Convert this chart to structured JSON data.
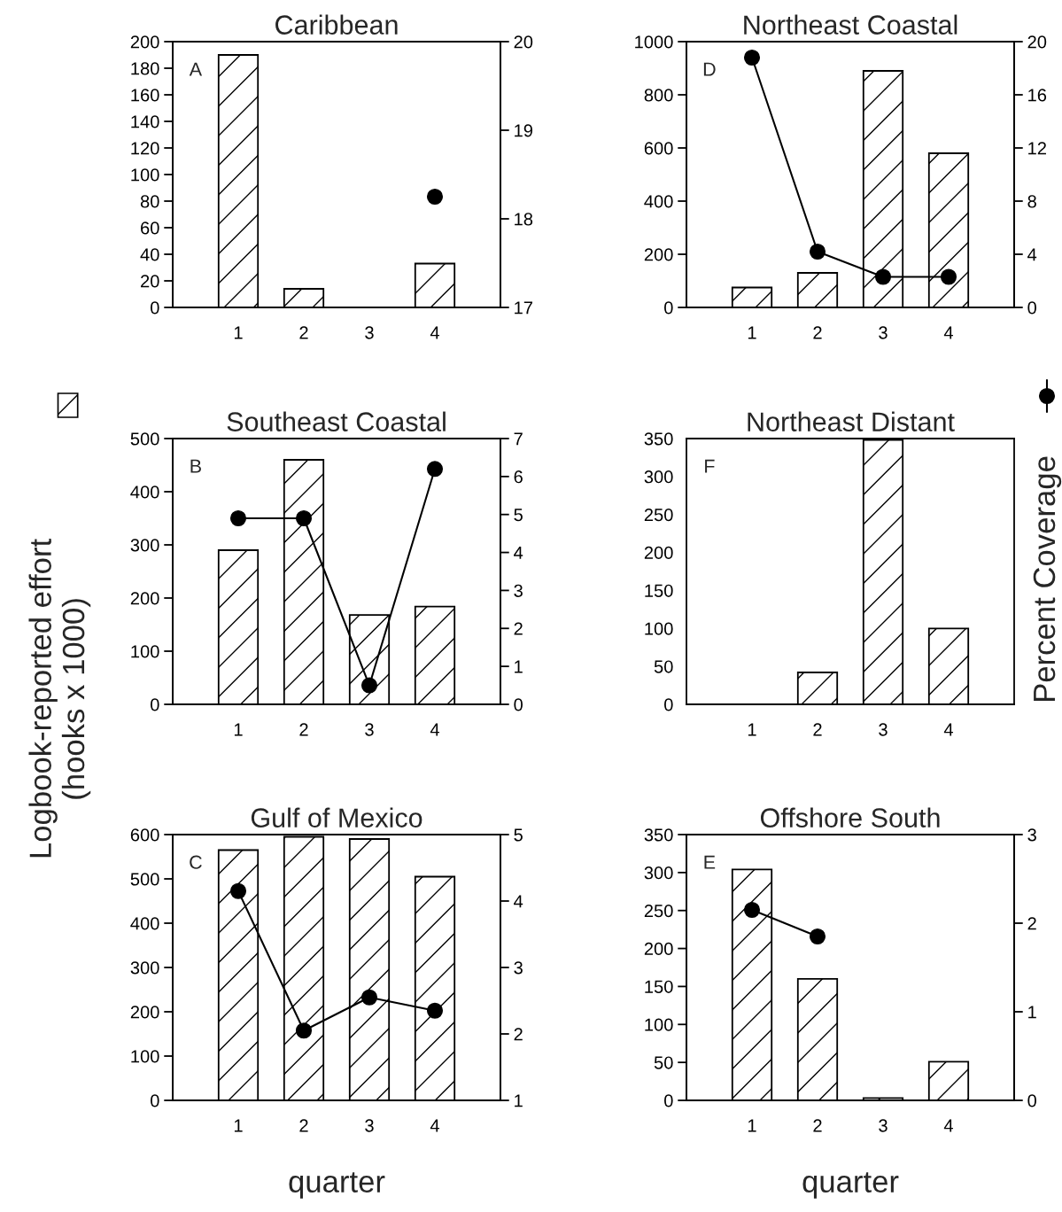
{
  "chart_data": [
    {
      "type": "bar",
      "title": "Caribbean",
      "annotations": [
        "A"
      ],
      "x": [
        1,
        2,
        3,
        4
      ],
      "xlim": [
        0,
        5
      ],
      "xticks": [
        1,
        2,
        3,
        4
      ],
      "ylim": [
        0,
        200
      ],
      "yticks": [
        0,
        20,
        40,
        60,
        80,
        100,
        120,
        140,
        160,
        180,
        200
      ],
      "y2lim": [
        17,
        20
      ],
      "y2ticks": [
        17,
        18,
        19,
        20
      ],
      "grid": false,
      "legend": false,
      "series": [
        {
          "color": "#000000",
          "values": [
            190,
            14,
            0,
            33
          ]
        },
        {
          "type": "line",
          "axis": "y2",
          "color": "#000000",
          "marker": "circle",
          "line_style": "solid",
          "values": [
            null,
            null,
            null,
            18.25
          ]
        }
      ]
    },
    {
      "type": "bar",
      "title": "Northeast Coastal",
      "annotations": [
        "D"
      ],
      "x": [
        1,
        2,
        3,
        4
      ],
      "xlim": [
        0,
        5
      ],
      "xticks": [
        1,
        2,
        3,
        4
      ],
      "ylim": [
        0,
        1000
      ],
      "yticks": [
        0,
        200,
        400,
        600,
        800,
        1000
      ],
      "y2lim": [
        0,
        20
      ],
      "y2ticks": [
        0,
        4,
        8,
        12,
        16,
        20
      ],
      "grid": false,
      "legend": false,
      "series": [
        {
          "color": "#000000",
          "values": [
            75,
            130,
            890,
            580
          ]
        },
        {
          "type": "line",
          "axis": "y2",
          "color": "#000000",
          "marker": "circle",
          "line_style": "solid",
          "values": [
            18.8,
            4.2,
            2.3,
            2.3
          ]
        }
      ]
    },
    {
      "type": "bar",
      "title": "Southeast Coastal",
      "annotations": [
        "B"
      ],
      "ylabel": "Logbook-reported effort\n(hooks x 1000)",
      "x": [
        1,
        2,
        3,
        4
      ],
      "xlim": [
        0,
        5
      ],
      "xticks": [
        1,
        2,
        3,
        4
      ],
      "ylim": [
        0,
        500
      ],
      "yticks": [
        0,
        100,
        200,
        300,
        400,
        500
      ],
      "y2lim": [
        0,
        7
      ],
      "y2ticks": [
        0,
        1,
        2,
        3,
        4,
        5,
        6,
        7
      ],
      "grid": false,
      "legend": false,
      "series": [
        {
          "color": "#000000",
          "values": [
            290,
            460,
            168,
            184
          ]
        },
        {
          "type": "line",
          "axis": "y2",
          "color": "#000000",
          "marker": "circle",
          "line_style": "solid",
          "values": [
            4.9,
            4.9,
            0.5,
            6.2
          ]
        }
      ]
    },
    {
      "type": "bar",
      "title": "Northeast Distant",
      "annotations": [
        "F"
      ],
      "y2label": "Percent Coverage",
      "x": [
        1,
        2,
        3,
        4
      ],
      "xlim": [
        0,
        5
      ],
      "xticks": [
        1,
        2,
        3,
        4
      ],
      "ylim": [
        0,
        350
      ],
      "yticks": [
        0,
        50,
        100,
        150,
        200,
        250,
        300,
        350
      ],
      "grid": false,
      "legend": false,
      "series": [
        {
          "color": "#000000",
          "values": [
            0,
            42,
            348,
            100
          ]
        }
      ]
    },
    {
      "type": "bar",
      "title": "Gulf of Mexico",
      "annotations": [
        "C"
      ],
      "xlabel": "quarter",
      "x": [
        1,
        2,
        3,
        4
      ],
      "xlim": [
        0,
        5
      ],
      "xticks": [
        1,
        2,
        3,
        4
      ],
      "ylim": [
        0,
        600
      ],
      "yticks": [
        0,
        100,
        200,
        300,
        400,
        500,
        600
      ],
      "y2lim": [
        1,
        5
      ],
      "y2ticks": [
        1,
        2,
        3,
        4,
        5
      ],
      "grid": false,
      "legend": false,
      "series": [
        {
          "color": "#000000",
          "values": [
            565,
            595,
            590,
            505
          ]
        },
        {
          "type": "line",
          "axis": "y2",
          "color": "#000000",
          "marker": "circle",
          "line_style": "solid",
          "values": [
            4.15,
            2.05,
            2.55,
            2.35
          ]
        }
      ]
    },
    {
      "type": "bar",
      "title": "Offshore South",
      "annotations": [
        "E"
      ],
      "xlabel": "quarter",
      "x": [
        1,
        2,
        3,
        4
      ],
      "xlim": [
        0,
        5
      ],
      "xticks": [
        1,
        2,
        3,
        4
      ],
      "ylim": [
        0,
        350
      ],
      "yticks": [
        0,
        50,
        100,
        150,
        200,
        250,
        300,
        350
      ],
      "y2lim": [
        0,
        3
      ],
      "y2ticks": [
        0,
        1,
        2,
        3
      ],
      "grid": false,
      "legend": false,
      "series": [
        {
          "color": "#000000",
          "values": [
            304,
            160,
            3,
            51
          ]
        },
        {
          "type": "line",
          "axis": "y2",
          "color": "#000000",
          "marker": "circle",
          "line_style": "solid",
          "values": [
            2.15,
            1.85,
            null,
            null
          ]
        }
      ]
    }
  ]
}
